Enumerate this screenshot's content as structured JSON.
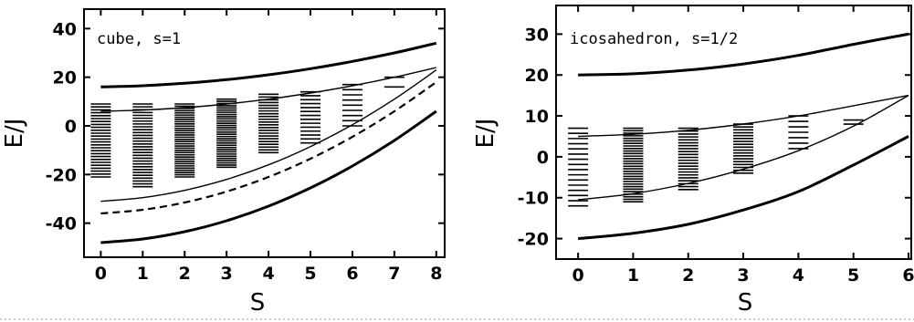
{
  "chart_data": [
    {
      "type": "line",
      "title": "cube, s=1",
      "xlabel": "S",
      "ylabel": "E/J",
      "xlim": [
        -0.4,
        8.2
      ],
      "ylim": [
        -54,
        48
      ],
      "xticks": [
        0,
        1,
        2,
        3,
        4,
        5,
        6,
        7,
        8
      ],
      "yticks": [
        -40,
        -20,
        0,
        20,
        40
      ],
      "grid": false,
      "curves": [
        {
          "name": "outer-upper",
          "style": "bold",
          "points": [
            [
              0,
              16
            ],
            [
              1,
              16.5
            ],
            [
              2,
              17.5
            ],
            [
              3,
              19
            ],
            [
              4,
              21
            ],
            [
              5,
              23.5
            ],
            [
              6,
              26.5
            ],
            [
              7,
              30
            ],
            [
              8,
              34
            ]
          ]
        },
        {
          "name": "inner-upper",
          "style": "thin",
          "points": [
            [
              0,
              6
            ],
            [
              1,
              6.5
            ],
            [
              2,
              7.5
            ],
            [
              3,
              9
            ],
            [
              4,
              11
            ],
            [
              5,
              13.5
            ],
            [
              6,
              16.5
            ],
            [
              7,
              20
            ],
            [
              8,
              24
            ]
          ]
        },
        {
          "name": "inner-lower",
          "style": "thin",
          "points": [
            [
              0,
              -31
            ],
            [
              1,
              -29.5
            ],
            [
              2,
              -26.5
            ],
            [
              3,
              -22
            ],
            [
              4,
              -16
            ],
            [
              5,
              -8.5
            ],
            [
              6,
              0.5
            ],
            [
              7,
              11
            ],
            [
              8,
              23
            ]
          ]
        },
        {
          "name": "dashed",
          "style": "dashed",
          "points": [
            [
              0,
              -36
            ],
            [
              1,
              -34.5
            ],
            [
              2,
              -31.5
            ],
            [
              3,
              -27
            ],
            [
              4,
              -21
            ],
            [
              5,
              -13.5
            ],
            [
              6,
              -4.5
            ],
            [
              7,
              6
            ],
            [
              8,
              18
            ]
          ]
        },
        {
          "name": "outer-lower",
          "style": "bold",
          "points": [
            [
              0,
              -48
            ],
            [
              1,
              -46.5
            ],
            [
              2,
              -43.5
            ],
            [
              3,
              -39
            ],
            [
              4,
              -33
            ],
            [
              5,
              -25.5
            ],
            [
              6,
              -16.5
            ],
            [
              7,
              -6
            ],
            [
              8,
              6
            ]
          ]
        }
      ],
      "level_bands": [
        {
          "S": 0,
          "min": -21,
          "max": 9,
          "count": 26
        },
        {
          "S": 1,
          "min": -25,
          "max": 9,
          "count": 30
        },
        {
          "S": 2,
          "min": -21,
          "max": 9,
          "count": 34
        },
        {
          "S": 3,
          "min": -17,
          "max": 11,
          "count": 32
        },
        {
          "S": 4,
          "min": -11,
          "max": 13,
          "count": 22
        },
        {
          "S": 5,
          "min": -7,
          "max": 14,
          "count": 14
        },
        {
          "S": 6,
          "min": 0,
          "max": 17,
          "count": 9
        },
        {
          "S": 7,
          "min": 16,
          "max": 20,
          "count": 2
        }
      ]
    },
    {
      "type": "line",
      "title": "icosahedron, s=1/2",
      "xlabel": "S",
      "ylabel": "E/J",
      "xlim": [
        -0.4,
        6.05
      ],
      "ylim": [
        -25,
        37
      ],
      "xticks": [
        0,
        1,
        2,
        3,
        4,
        5,
        6
      ],
      "yticks": [
        -20,
        -10,
        0,
        10,
        20,
        30
      ],
      "grid": false,
      "curves": [
        {
          "name": "outer-upper",
          "style": "bold",
          "points": [
            [
              0,
              20
            ],
            [
              1,
              20.3
            ],
            [
              2,
              21.2
            ],
            [
              3,
              22.7
            ],
            [
              4,
              24.8
            ],
            [
              5,
              27.5
            ],
            [
              6,
              30
            ]
          ]
        },
        {
          "name": "inner-upper",
          "style": "thin",
          "points": [
            [
              0,
              5
            ],
            [
              1,
              5.5
            ],
            [
              2,
              6.5
            ],
            [
              3,
              8
            ],
            [
              4,
              10
            ],
            [
              5,
              12.5
            ],
            [
              6,
              15
            ]
          ]
        },
        {
          "name": "inner-lower",
          "style": "thin",
          "points": [
            [
              0,
              -10.5
            ],
            [
              1,
              -9
            ],
            [
              2,
              -6.5
            ],
            [
              3,
              -3
            ],
            [
              4,
              1.5
            ],
            [
              5,
              7.5
            ],
            [
              6,
              15
            ]
          ]
        },
        {
          "name": "outer-lower",
          "style": "bold",
          "points": [
            [
              0,
              -20
            ],
            [
              1,
              -18.7
            ],
            [
              2,
              -16.5
            ],
            [
              3,
              -13
            ],
            [
              4,
              -8.5
            ],
            [
              5,
              -2
            ],
            [
              6,
              5
            ]
          ]
        }
      ],
      "level_bands": [
        {
          "S": 0,
          "min": -12,
          "max": 7,
          "count": 16
        },
        {
          "S": 1,
          "min": -11,
          "max": 7,
          "count": 30
        },
        {
          "S": 2,
          "min": -8,
          "max": 7,
          "count": 22
        },
        {
          "S": 3,
          "min": -4,
          "max": 8,
          "count": 18
        },
        {
          "S": 4,
          "min": 2,
          "max": 10,
          "count": 7
        },
        {
          "S": 5,
          "min": 8,
          "max": 9,
          "count": 2
        }
      ]
    }
  ]
}
